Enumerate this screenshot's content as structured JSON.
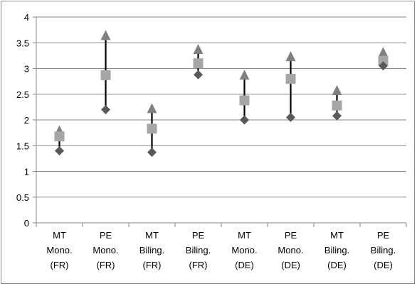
{
  "chart_data": {
    "type": "scatter",
    "subtype": "high-low-marker",
    "title": "",
    "xlabel": "",
    "ylabel": "",
    "ylim": [
      0,
      4
    ],
    "y_ticks": [
      "0",
      "0.5",
      "1",
      "1.5",
      "2",
      "2.5",
      "3",
      "3.5",
      "4"
    ],
    "y_tick_values": [
      0,
      0.5,
      1,
      1.5,
      2,
      2.5,
      3,
      3.5,
      4
    ],
    "grid": true,
    "legend": "none",
    "categories": [
      [
        "MT",
        "Mono.",
        "(FR)"
      ],
      [
        "PE",
        "Mono.",
        "(FR)"
      ],
      [
        "MT",
        "Biling.",
        "(FR)"
      ],
      [
        "PE",
        "Biling.",
        "(FR)"
      ],
      [
        "MT",
        "Mono.",
        "(DE)"
      ],
      [
        "PE",
        "Mono.",
        "(DE)"
      ],
      [
        "MT",
        "Biling.",
        "(DE)"
      ],
      [
        "PE",
        "Biling.",
        "(DE)"
      ]
    ],
    "series": [
      {
        "marker": "triangle",
        "color": "#808080",
        "values": [
          1.8,
          3.65,
          2.23,
          3.38,
          2.88,
          3.24,
          2.58,
          3.32
        ]
      },
      {
        "marker": "square",
        "color": "#a6a6a6",
        "values": [
          1.68,
          2.87,
          1.83,
          3.1,
          2.38,
          2.8,
          2.28,
          3.15
        ]
      },
      {
        "marker": "diamond",
        "color": "#595959",
        "values": [
          1.4,
          2.2,
          1.37,
          2.88,
          2.0,
          2.05,
          2.08,
          3.05
        ]
      }
    ],
    "colors": {
      "grid": "#878787",
      "axis": "#878787",
      "range_line": "#000000",
      "frame": "#8c8c8c"
    }
  }
}
